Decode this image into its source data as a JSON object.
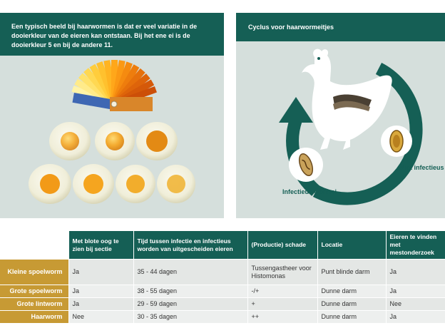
{
  "left_panel": {
    "caption": "Een typisch beeld bij haarwormen is dat er veel variatie in de dooierkleur van de eieren kan ontstaan. Bij het ene ei is de dooierkleur 5 en bij de andere 11."
  },
  "right_panel": {
    "title": "Cyclus voor haarwormeitjes",
    "label_infectious": "Infectieus wormei",
    "label_noninfectious": "Niet infectieus wormei"
  },
  "table": {
    "headers": [
      "Met blote oog te zien bij sectie",
      "Tijd tussen infectie en infectieus worden van uitgescheiden eieren",
      "(Productie) schade",
      "Locatie",
      "Eieren te vinden met mestonderzoek"
    ],
    "rows": [
      {
        "name": "Kleine spoelworm",
        "cells": [
          "Ja",
          "35 - 44 dagen",
          "Tussengastheer voor Histomonas",
          "Punt blinde darm",
          "Ja"
        ]
      },
      {
        "name": "Grote spoelworm",
        "cells": [
          "Ja",
          "38 - 55 dagen",
          "-/+",
          "Dunne darm",
          "Ja"
        ]
      },
      {
        "name": "Grote lintworm",
        "cells": [
          "Ja",
          "29 - 59 dagen",
          "+",
          "Dunne darm",
          "Nee"
        ]
      },
      {
        "name": "Haarworm",
        "cells": [
          "Nee",
          "30 - 35 dagen",
          "++",
          "Dunne darm",
          "Ja"
        ]
      }
    ]
  },
  "colors": {
    "header_green": "#155f55",
    "panel_bg": "#d5dfdc",
    "row_label_gold": "#c79a34"
  }
}
